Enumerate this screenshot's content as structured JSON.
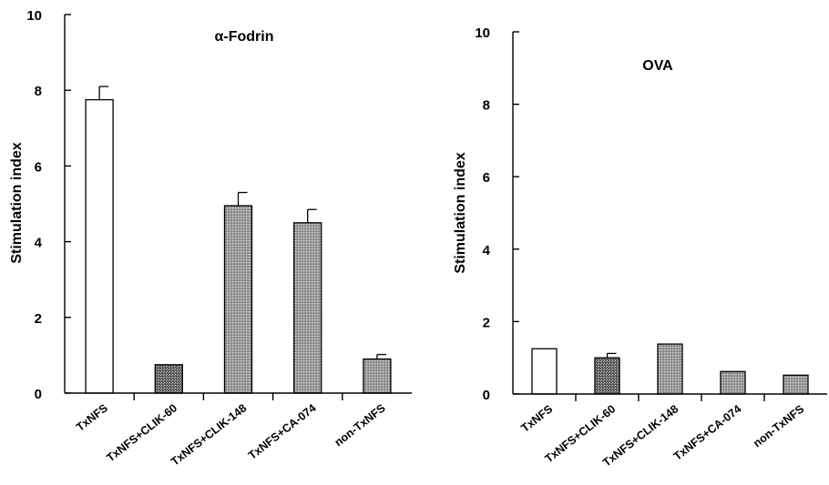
{
  "chart_data": [
    {
      "type": "bar",
      "title": "α-Fodrin",
      "ylabel": "Stimulation index",
      "xlabel": "",
      "ylim": [
        0,
        10
      ],
      "yticks": [
        "0",
        "2",
        "4",
        "6",
        "8",
        "10"
      ],
      "categories": [
        "TxNFS",
        "TxNFS+CLIK-60",
        "TxNFS+CLIK-148",
        "TxNFS+CA-074",
        "non-TxNFS"
      ],
      "values": [
        7.75,
        0.75,
        4.95,
        4.5,
        0.9
      ],
      "errors": [
        0.35,
        0,
        0.35,
        0.35,
        0.12
      ],
      "fills": [
        "white",
        "dark",
        "medium",
        "medium",
        "medium"
      ]
    },
    {
      "type": "bar",
      "title": "OVA",
      "ylabel": "Stimulation index",
      "xlabel": "",
      "ylim": [
        0,
        10
      ],
      "yticks": [
        "0",
        "2",
        "4",
        "6",
        "8",
        "10"
      ],
      "categories": [
        "TxNFS",
        "TxNFS+CLIK-60",
        "TxNFS+CLIK-148",
        "TxNFS+CA-074",
        "non-TxNFS"
      ],
      "values": [
        1.25,
        1.0,
        1.38,
        0.62,
        0.52
      ],
      "errors": [
        0,
        0.12,
        0,
        0,
        0
      ],
      "fills": [
        "white",
        "dark",
        "medium",
        "medium",
        "medium"
      ]
    }
  ]
}
